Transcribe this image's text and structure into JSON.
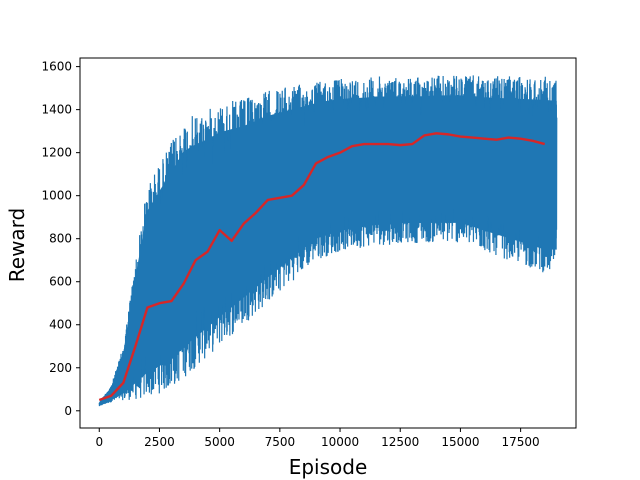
{
  "chart_data": {
    "type": "line",
    "title": "",
    "xlabel": "Episode",
    "ylabel": "Reward",
    "xlim": [
      -800,
      19800
    ],
    "ylim": [
      -80,
      1640
    ],
    "xticks": [
      0,
      2500,
      5000,
      7500,
      10000,
      12500,
      15000,
      17500
    ],
    "xtick_labels": [
      "0",
      "2500",
      "5000",
      "7500",
      "10000",
      "12500",
      "15000",
      "17500"
    ],
    "yticks": [
      0,
      200,
      400,
      600,
      800,
      1000,
      1200,
      1400,
      1600
    ],
    "ytick_labels": [
      "0",
      "200",
      "400",
      "600",
      "800",
      "1000",
      "1200",
      "1400",
      "1600"
    ],
    "grid": false,
    "series": [
      {
        "role": "raw",
        "color": "#1f77b4",
        "x": [
          0,
          500,
          1000,
          1500,
          2000,
          2500,
          3000,
          3500,
          4000,
          4500,
          5000,
          5500,
          6000,
          6500,
          7000,
          7500,
          8000,
          8500,
          9000,
          9500,
          10000,
          10500,
          11000,
          11500,
          12000,
          12500,
          13000,
          13500,
          14000,
          14500,
          15000,
          15500,
          16000,
          16500,
          17000,
          17500,
          18000,
          18500,
          19000
        ],
        "upper": [
          40,
          120,
          300,
          700,
          1050,
          1150,
          1250,
          1350,
          1380,
          1400,
          1430,
          1440,
          1450,
          1470,
          1490,
          1500,
          1510,
          1520,
          1530,
          1540,
          1545,
          1550,
          1550,
          1555,
          1555,
          1555,
          1555,
          1555,
          1560,
          1560,
          1560,
          1560,
          1555,
          1555,
          1555,
          1555,
          1555,
          1555,
          1550
        ],
        "lower": [
          20,
          40,
          50,
          50,
          60,
          80,
          100,
          150,
          200,
          250,
          300,
          350,
          400,
          450,
          500,
          550,
          600,
          650,
          700,
          720,
          740,
          750,
          760,
          770,
          770,
          780,
          780,
          780,
          780,
          780,
          780,
          760,
          740,
          720,
          700,
          680,
          660,
          640,
          640
        ]
      },
      {
        "role": "smoothed",
        "color": "#d62728",
        "x": [
          0,
          500,
          1000,
          1500,
          2000,
          2500,
          3000,
          3500,
          4000,
          4500,
          5000,
          5500,
          6000,
          6500,
          7000,
          7500,
          8000,
          8500,
          9000,
          9500,
          10000,
          10500,
          11000,
          11500,
          12000,
          12500,
          13000,
          13500,
          14000,
          14500,
          15000,
          15500,
          16000,
          16500,
          17000,
          17500,
          18000,
          18500
        ],
        "values": [
          50,
          70,
          130,
          300,
          480,
          500,
          510,
          590,
          700,
          740,
          840,
          790,
          870,
          920,
          980,
          990,
          1000,
          1050,
          1150,
          1180,
          1200,
          1230,
          1240,
          1240,
          1240,
          1235,
          1240,
          1280,
          1290,
          1285,
          1275,
          1270,
          1265,
          1260,
          1270,
          1265,
          1255,
          1240
        ]
      }
    ]
  }
}
